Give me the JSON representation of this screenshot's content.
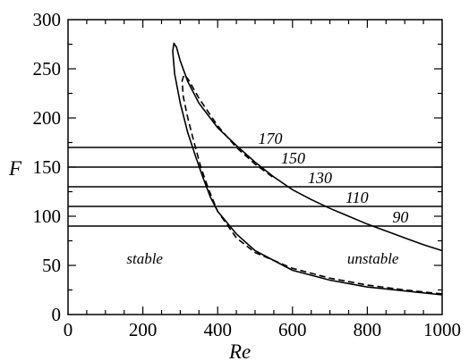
{
  "chart_data": {
    "type": "line",
    "xlabel": "Re",
    "ylabel": "F",
    "xlim": [
      0,
      1000
    ],
    "ylim": [
      0,
      300
    ],
    "x_ticks": [
      0,
      200,
      400,
      600,
      800,
      1000
    ],
    "y_ticks": [
      0,
      50,
      100,
      150,
      200,
      250,
      300
    ],
    "grid": false,
    "series": [
      {
        "style": "solid",
        "points": [
          [
            1000,
            20
          ],
          [
            900,
            24
          ],
          [
            800,
            28
          ],
          [
            700,
            35
          ],
          [
            600,
            45
          ],
          [
            500,
            65
          ],
          [
            450,
            82
          ],
          [
            400,
            105
          ],
          [
            380,
            120
          ],
          [
            360,
            140
          ],
          [
            340,
            162
          ],
          [
            320,
            185
          ],
          [
            300,
            215
          ],
          [
            285,
            245
          ],
          [
            280,
            268
          ],
          [
            283,
            276
          ],
          [
            290,
            272
          ],
          [
            300,
            258
          ],
          [
            320,
            237
          ],
          [
            350,
            215
          ],
          [
            400,
            190
          ],
          [
            450,
            172
          ],
          [
            500,
            155
          ],
          [
            550,
            140
          ],
          [
            600,
            127
          ],
          [
            650,
            117
          ],
          [
            700,
            108
          ],
          [
            750,
            100
          ],
          [
            800,
            92
          ],
          [
            850,
            85
          ],
          [
            900,
            78
          ],
          [
            950,
            71
          ],
          [
            1000,
            65
          ]
        ]
      },
      {
        "style": "dashed",
        "points": [
          [
            1000,
            21
          ],
          [
            900,
            25
          ],
          [
            800,
            30
          ],
          [
            700,
            37
          ],
          [
            600,
            47
          ],
          [
            500,
            63
          ],
          [
            450,
            78
          ],
          [
            400,
            105
          ],
          [
            375,
            128
          ],
          [
            355,
            150
          ],
          [
            335,
            178
          ],
          [
            320,
            200
          ],
          [
            308,
            222
          ],
          [
            305,
            238
          ],
          [
            310,
            244
          ],
          [
            320,
            240
          ],
          [
            350,
            220
          ],
          [
            400,
            192
          ],
          [
            450,
            170
          ],
          [
            500,
            153
          ],
          [
            550,
            139
          ]
        ]
      }
    ],
    "horizontal_lines": [
      {
        "y": 170,
        "label": "170"
      },
      {
        "y": 150,
        "label": "150"
      },
      {
        "y": 130,
        "label": "130"
      },
      {
        "y": 110,
        "label": "110"
      },
      {
        "y": 90,
        "label": "90"
      }
    ],
    "annotations": [
      {
        "text": "stable",
        "x": 205,
        "y": 52
      },
      {
        "text": "unstable",
        "x": 815,
        "y": 52
      }
    ]
  }
}
